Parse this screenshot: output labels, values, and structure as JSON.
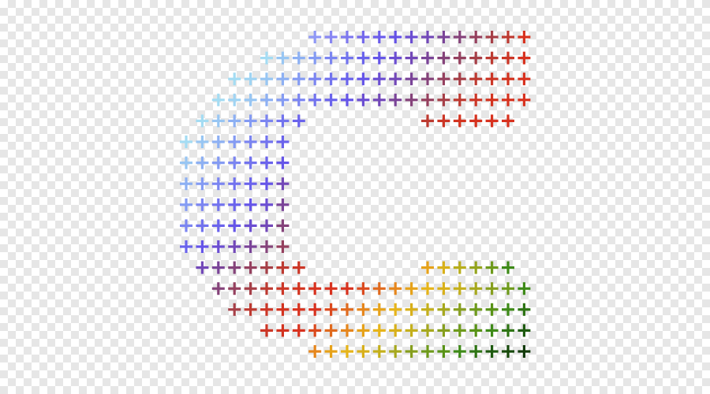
{
  "graphic": {
    "subject": "cross-stitch-letter-c",
    "glyph_icon": "plus-icon",
    "checkerboard_colors": [
      "#ffffff",
      "#e6e6e6"
    ],
    "rows": [
      {
        "start_col": 8,
        "colors": [
          "#8f98f6",
          "#8887f3",
          "#7e78ef",
          "#7469ec",
          "#6b5ceb",
          "#6552e6",
          "#6b4ed2",
          "#7248b8",
          "#7a4498",
          "#85437a",
          "#95405e",
          "#a63f47",
          "#bd3a31",
          "#d8321f"
        ]
      },
      {
        "start_col": 5,
        "colors": [
          "#a4dcf3",
          "#98c6f3",
          "#8db0f3",
          "#849bf3",
          "#7b85f1",
          "#7273ee",
          "#6a63ec",
          "#6555e8",
          "#6b4ed2",
          "#7248b8",
          "#7a4498",
          "#85437a",
          "#95405e",
          "#a63f47",
          "#bd3a31",
          "#cc3626",
          "#d8321f"
        ]
      },
      {
        "start_col": 3,
        "colors": [
          "#a4dcf3",
          "#a0d4f3",
          "#98c6f3",
          "#8db0f3",
          "#849bf3",
          "#7b85f1",
          "#7273ee",
          "#6a63ec",
          "#6555e8",
          "#6b4ed2",
          "#7248b8",
          "#7a4498",
          "#85437a",
          "#95405e",
          "#a63f47",
          "#bd3a31",
          "#cc3626",
          "#d3331f",
          "#d8321f"
        ]
      },
      {
        "start_col": 2,
        "colors": [
          "#a4dcf3",
          "#a0d4f3",
          "#98c6f3",
          "#8db0f3",
          "#849bf3",
          "#7b85f1",
          "#7273ee",
          "#6a63ec",
          "#6555e8",
          "#6b4ed2",
          "#7248b8",
          "#7a4498",
          "#85437a",
          "#95405e",
          "#a63f47",
          "#bd3a31",
          "#cc3626",
          "#d3331f",
          "#d6321f",
          "#d8321f"
        ]
      },
      {
        "start_col": 1,
        "colors": [
          "#a4dcf3",
          "#98c6f3",
          "#8db0f3",
          "#849bf3",
          "#7b85f1",
          "#7273ee",
          "#6a63ec"
        ],
        "second": {
          "start_col": 15,
          "colors": [
            "#bd3a31",
            "#cc3626",
            "#d3331f",
            "#d6321f",
            "#d8321f",
            "#d8321f"
          ]
        }
      },
      {
        "start_col": 0,
        "colors": [
          "#a4dcf3",
          "#98c6f3",
          "#8db0f3",
          "#849bf3",
          "#7b85f1",
          "#7273ee",
          "#6a63ec"
        ]
      },
      {
        "start_col": 0,
        "colors": [
          "#98c6f3",
          "#8db0f3",
          "#849bf3",
          "#7b85f1",
          "#7273ee",
          "#6a63ec",
          "#6555e8"
        ]
      },
      {
        "start_col": 0,
        "colors": [
          "#8db0f3",
          "#849bf3",
          "#7b85f1",
          "#7273ee",
          "#6a63ec",
          "#6555e8",
          "#7248b8"
        ]
      },
      {
        "start_col": 0,
        "colors": [
          "#849bf3",
          "#7b85f1",
          "#7273ee",
          "#6a63ec",
          "#6555e8",
          "#6b4ed2",
          "#7a4498"
        ]
      },
      {
        "start_col": 0,
        "colors": [
          "#7b85f1",
          "#7273ee",
          "#6a63ec",
          "#6555e8",
          "#6b4ed2",
          "#7248b8",
          "#85437a"
        ]
      },
      {
        "start_col": 0,
        "colors": [
          "#6a63ec",
          "#6555e8",
          "#6b4ed2",
          "#7248b8",
          "#7a4498",
          "#85437a",
          "#95405e"
        ]
      },
      {
        "start_col": 1,
        "colors": [
          "#7248b8",
          "#7a4498",
          "#85437a",
          "#95405e",
          "#a63f47",
          "#bd3a31",
          "#cc3626"
        ],
        "second": {
          "start_col": 15,
          "colors": [
            "#e6a21a",
            "#d8b01a",
            "#b8ae1c",
            "#94a41e",
            "#6e9a1c",
            "#3e8a18"
          ]
        }
      },
      {
        "start_col": 2,
        "colors": [
          "#85437a",
          "#95405e",
          "#a63f47",
          "#bd3a31",
          "#cc3626",
          "#d3331f",
          "#d8321f",
          "#d8321f",
          "#d8321f",
          "#db4a1e",
          "#e06a1e",
          "#e6861c",
          "#e6a21a",
          "#e6b41a",
          "#d8b01a",
          "#c4b01c",
          "#a6a81e",
          "#869e1e",
          "#6e9a1c",
          "#3e8a18"
        ]
      },
      {
        "start_col": 3,
        "colors": [
          "#a63f47",
          "#bd3a31",
          "#cc3626",
          "#d3331f",
          "#d8321f",
          "#d8321f",
          "#db4a1e",
          "#e06a1e",
          "#e6861c",
          "#e6a21a",
          "#e6b41a",
          "#d8b01a",
          "#c4b01c",
          "#a6a81e",
          "#869e1e",
          "#6e9a1c",
          "#589216",
          "#3e8a18",
          "#2e7414"
        ]
      },
      {
        "start_col": 5,
        "colors": [
          "#cc3626",
          "#d3331f",
          "#d8321f",
          "#db4a1e",
          "#e06a1e",
          "#e6861c",
          "#e6a21a",
          "#e6b41a",
          "#d8b01a",
          "#c4b01c",
          "#a6a81e",
          "#869e1e",
          "#6e9a1c",
          "#589216",
          "#3e8a18",
          "#2e7414",
          "#1e5a10"
        ]
      },
      {
        "start_col": 8,
        "colors": [
          "#e6861c",
          "#e6a21a",
          "#e6b41a",
          "#d8b01a",
          "#c4b01c",
          "#a6a81e",
          "#869e1e",
          "#6e9a1c",
          "#589216",
          "#3e8a18",
          "#2e7414",
          "#1e5a10",
          "#184a0c",
          "#123a0a"
        ]
      }
    ]
  }
}
